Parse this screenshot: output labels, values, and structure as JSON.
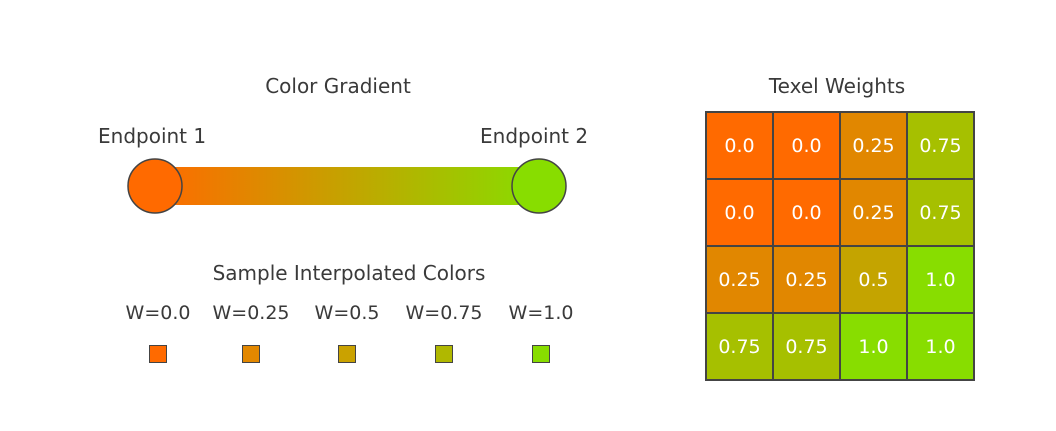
{
  "gradient": {
    "title": "Color Gradient",
    "endpoint1": {
      "label": "Endpoint 1",
      "color": "#ff6a00"
    },
    "endpoint2": {
      "label": "Endpoint 2",
      "color": "#88dd00"
    }
  },
  "samples": {
    "title": "Sample Interpolated Colors",
    "items": [
      {
        "label": "W=0.0",
        "color": "#ff6a00"
      },
      {
        "label": "W=0.25",
        "color": "#e38800"
      },
      {
        "label": "W=0.5",
        "color": "#caa200"
      },
      {
        "label": "W=0.75",
        "color": "#b0b800"
      },
      {
        "label": "W=1.0",
        "color": "#88dd00"
      }
    ]
  },
  "texel": {
    "title": "Texel Weights",
    "rows": [
      [
        "0.0",
        "0.0",
        "0.25",
        "0.75"
      ],
      [
        "0.0",
        "0.0",
        "0.25",
        "0.75"
      ],
      [
        "0.25",
        "0.25",
        "0.5",
        "1.0"
      ],
      [
        "0.75",
        "0.75",
        "1.0",
        "1.0"
      ]
    ]
  }
}
